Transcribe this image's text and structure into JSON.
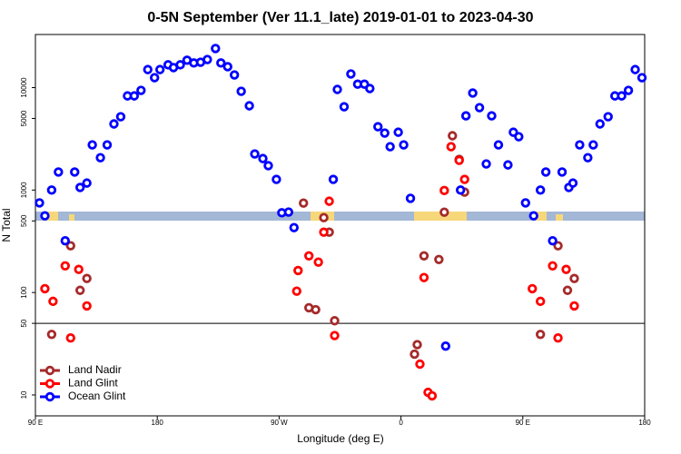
{
  "chart_data": {
    "type": "scatter",
    "title": "0-5N September (Ver 11.1_late)   2019-01-01 to 2023-04-30",
    "x_label": "Longitude (deg E)",
    "y_label": "N Total",
    "log_y": true,
    "legend": "bottom-left",
    "xlim": [
      90,
      540
    ],
    "ylim": [
      6.25,
      33000
    ],
    "xticks": [
      {
        "value": 90,
        "label": "90 E"
      },
      180,
      {
        "value": 270,
        "label": "90 W"
      },
      {
        "value": 360,
        "label": "0"
      },
      {
        "value": 450,
        "label": "90 E"
      },
      {
        "value": 540,
        "label": "180"
      }
    ],
    "yticks": [
      10,
      50,
      100,
      500,
      1000,
      5000,
      10000
    ],
    "hline": 50,
    "series": [
      {
        "name": "Land Nadir",
        "color": "#a52a2a",
        "x": [
          102,
          116,
          123,
          128,
          288,
          292,
          297,
          303,
          307,
          311,
          370,
          372,
          377,
          388,
          392,
          398,
          403,
          407,
          463,
          476,
          483,
          488
        ],
        "values": [
          39,
          286,
          105,
          137,
          746,
          71,
          68,
          538,
          388,
          53,
          25,
          31,
          228,
          210,
          608,
          3390,
          1990,
          955,
          39,
          286,
          105,
          137
        ]
      },
      {
        "name": "Land Glint",
        "color": "#ff0000",
        "x": [
          97,
          103,
          112,
          116,
          122,
          128,
          283,
          284,
          292,
          299,
          303,
          307,
          311,
          374,
          377,
          380,
          383,
          392,
          397,
          403,
          407,
          457,
          463,
          472,
          476,
          482,
          488
        ],
        "values": [
          109,
          82,
          182,
          36,
          168,
          74,
          103,
          164,
          228,
          198,
          388,
          778,
          38,
          20,
          140,
          10.6,
          9.8,
          990,
          2650,
          1950,
          1270,
          109,
          82,
          182,
          36,
          168,
          74
        ]
      },
      {
        "name": "Ocean Glint",
        "color": "#0000ff",
        "x": [
          93,
          97,
          102,
          107,
          112,
          119,
          123,
          128,
          132,
          138,
          143,
          148,
          153,
          158,
          163,
          168,
          173,
          178,
          182,
          188,
          192,
          197,
          202,
          207,
          212,
          217,
          223,
          227,
          232,
          237,
          242,
          248,
          252,
          258,
          262,
          268,
          272,
          277,
          281,
          310,
          313,
          318,
          323,
          328,
          333,
          337,
          343,
          348,
          352,
          358,
          362,
          367,
          393,
          404,
          408,
          413,
          418,
          423,
          427,
          432,
          439,
          443,
          447,
          452,
          458,
          463,
          467,
          472,
          479,
          484,
          487,
          492,
          498,
          502,
          507,
          513,
          518,
          523,
          528,
          533,
          538
        ],
        "values": [
          750,
          560,
          1000,
          1500,
          320,
          1500,
          1060,
          1170,
          2760,
          2070,
          2760,
          4420,
          5200,
          8300,
          8300,
          9400,
          15000,
          12500,
          15000,
          16700,
          15700,
          16700,
          18500,
          17400,
          17700,
          18800,
          24100,
          17400,
          16000,
          13300,
          9200,
          6650,
          2250,
          2030,
          1730,
          1270,
          600,
          610,
          430,
          1270,
          9600,
          6500,
          13600,
          10800,
          10800,
          9800,
          4150,
          3600,
          2650,
          3670,
          2760,
          830,
          30,
          1000,
          5300,
          8850,
          6380,
          1800,
          5300,
          2760,
          1760,
          3670,
          3320,
          750,
          560,
          1000,
          1500,
          320,
          1500,
          1060,
          1170,
          2760,
          2070,
          2760,
          4420,
          5200,
          8300,
          8300,
          9400,
          15000,
          12500
        ]
      }
    ]
  }
}
